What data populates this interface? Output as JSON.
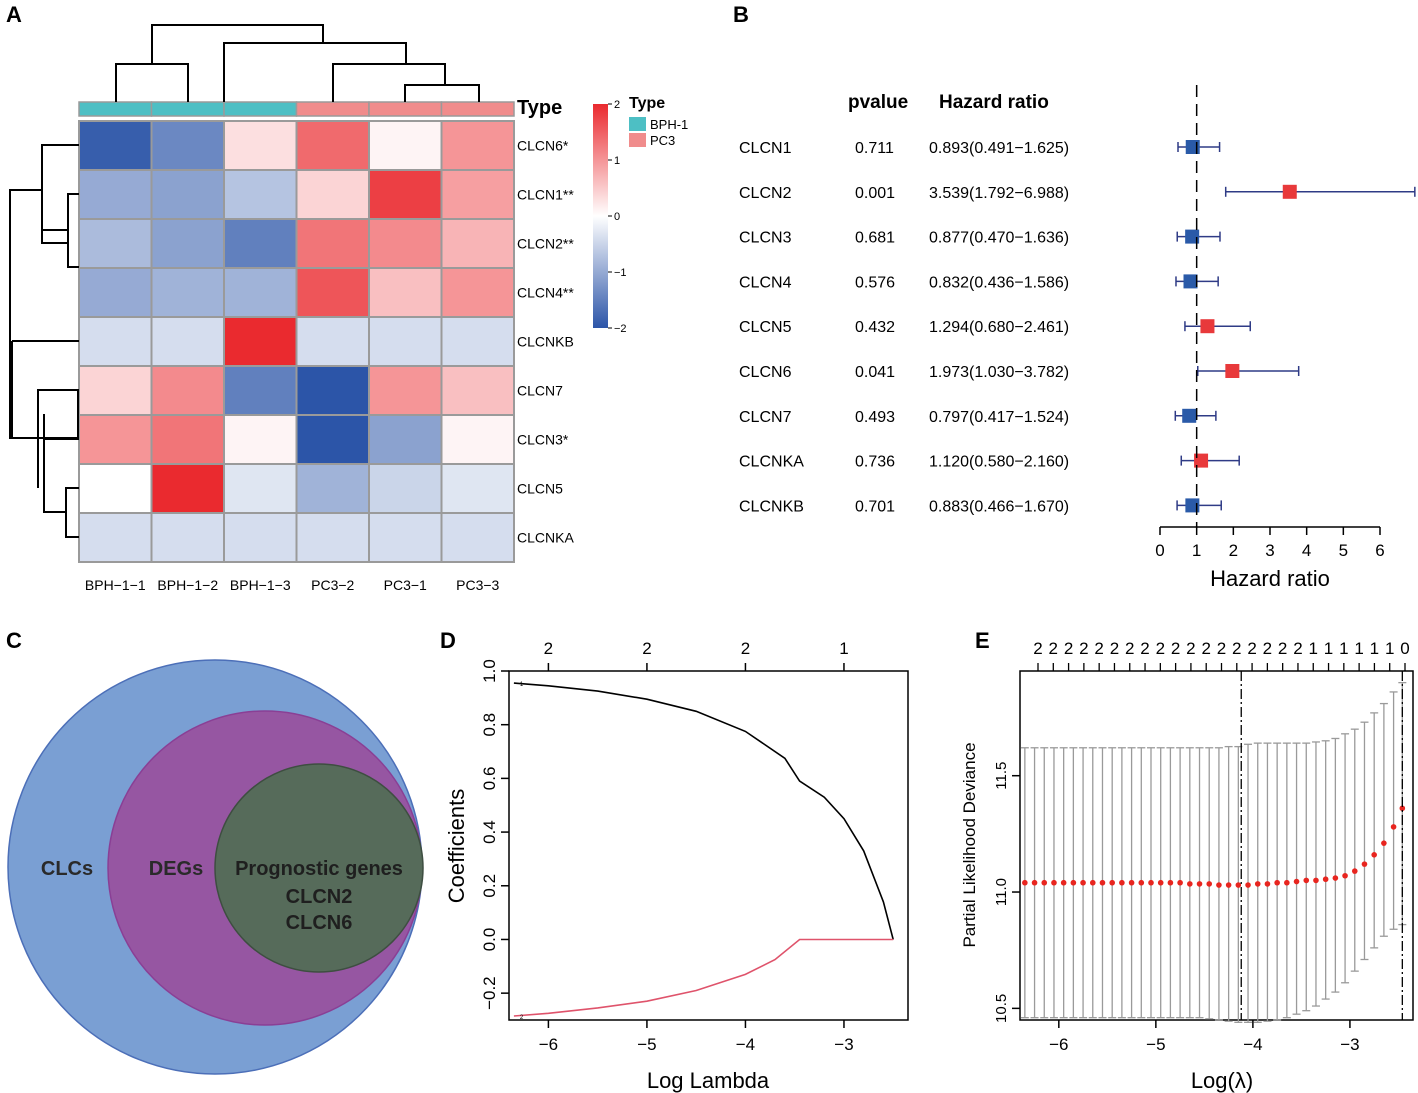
{
  "panels": {
    "A": "A",
    "B": "B",
    "C": "C",
    "D": "D",
    "E": "E"
  },
  "chart_data": [
    {
      "panel": "A",
      "type": "heatmap",
      "columns": [
        "BPH−1−1",
        "BPH−1−2",
        "BPH−1−3",
        "PC3−2",
        "PC3−1",
        "PC3−3"
      ],
      "column_types": [
        "BPH-1",
        "BPH-1",
        "BPH-1",
        "PC3",
        "PC3",
        "PC3"
      ],
      "rows": [
        "CLCN6*",
        "CLCN1**",
        "CLCN2**",
        "CLCN4**",
        "CLCNKB",
        "CLCN7",
        "CLCN3*",
        "CLCN5",
        "CLCNKA"
      ],
      "values": [
        [
          -1.9,
          -1.4,
          0.3,
          1.4,
          0.1,
          1.0
        ],
        [
          -1.0,
          -1.1,
          -0.7,
          0.4,
          1.8,
          0.9
        ],
        [
          -0.8,
          -1.1,
          -1.5,
          1.3,
          1.1,
          0.7
        ],
        [
          -1.0,
          -0.9,
          -0.9,
          1.6,
          0.6,
          1.0
        ],
        [
          -0.4,
          -0.4,
          2.0,
          -0.4,
          -0.4,
          -0.4
        ],
        [
          0.4,
          1.1,
          -1.5,
          -2.0,
          1.0,
          0.6
        ],
        [
          1.0,
          1.3,
          0.1,
          -2.0,
          -1.1,
          0.1
        ],
        [
          0.0,
          2.0,
          -0.3,
          -0.9,
          -0.5,
          -0.3
        ],
        [
          -0.4,
          -0.4,
          -0.4,
          -0.4,
          -0.4,
          -0.4
        ]
      ],
      "annotation_title": "Type",
      "legend_title": "Type",
      "legend_entries": [
        {
          "label": "BPH-1",
          "color": "#4dbfc4"
        },
        {
          "label": "PC3",
          "color": "#f08c8c"
        }
      ],
      "colorbar_ticks": [
        "2",
        "1",
        "0",
        "−1",
        "−2"
      ],
      "color_low": "#2c55a8",
      "color_mid": "#ffffff",
      "color_high": "#ea2a2f"
    },
    {
      "panel": "B",
      "type": "forest",
      "header_pvalue": "pvalue",
      "header_hr": "Hazard ratio",
      "genes": [
        "CLCN1",
        "CLCN2",
        "CLCN3",
        "CLCN4",
        "CLCN5",
        "CLCN6",
        "CLCN7",
        "CLCNKA",
        "CLCNKB"
      ],
      "pvalues": [
        "0.711",
        "0.001",
        "0.681",
        "0.576",
        "0.432",
        "0.041",
        "0.493",
        "0.736",
        "0.701"
      ],
      "hr_text": [
        "0.893(0.491−1.625)",
        "3.539(1.792−6.988)",
        "0.877(0.470−1.636)",
        "0.832(0.436−1.586)",
        "1.294(0.680−2.461)",
        "1.973(1.030−3.782)",
        "0.797(0.417−1.524)",
        "1.120(0.580−2.160)",
        "0.883(0.466−1.670)"
      ],
      "hr": [
        0.893,
        3.539,
        0.877,
        0.832,
        1.294,
        1.973,
        0.797,
        1.12,
        0.883
      ],
      "lower": [
        0.491,
        1.792,
        0.47,
        0.436,
        0.68,
        1.03,
        0.417,
        0.58,
        0.466
      ],
      "upper": [
        1.625,
        6.988,
        1.636,
        1.586,
        2.461,
        3.782,
        1.524,
        2.16,
        1.67
      ],
      "xlim": [
        0,
        6
      ],
      "xticks": [
        "0",
        "1",
        "2",
        "3",
        "4",
        "5",
        "6"
      ],
      "xlabel": "Hazard ratio",
      "risk_color": "#e8393b",
      "protect_color": "#2a5aa8"
    },
    {
      "panel": "C",
      "type": "venn",
      "sets": [
        {
          "label": "CLCs",
          "color": "#7a9fd3"
        },
        {
          "label": "DEGs",
          "color": "#9656a2"
        },
        {
          "label": "Prognostic genes",
          "color": "#566b5a"
        }
      ],
      "prognostic_genes": [
        "CLCN2",
        "CLCN6"
      ]
    },
    {
      "panel": "D",
      "type": "line",
      "xlabel": "Log Lambda",
      "ylabel": "Coefficients",
      "xlim": [
        -6.4,
        -2.35
      ],
      "ylim": [
        -0.3,
        1.0
      ],
      "xticks": [
        "−6",
        "−5",
        "−4",
        "−3"
      ],
      "yticks": [
        "−0.2",
        "0.0",
        "0.2",
        "0.4",
        "0.6",
        "0.8",
        "1.0"
      ],
      "top_ticks": [
        "2",
        "2",
        "2",
        "1"
      ],
      "series": [
        {
          "name": "1",
          "color": "#000000",
          "x": [
            -6.35,
            -6.0,
            -5.5,
            -5.0,
            -4.5,
            -4.0,
            -3.6,
            -3.45,
            -3.2,
            -3.0,
            -2.8,
            -2.6,
            -2.5
          ],
          "y": [
            0.955,
            0.945,
            0.925,
            0.895,
            0.85,
            0.775,
            0.675,
            0.59,
            0.53,
            0.45,
            0.33,
            0.14,
            0.0
          ]
        },
        {
          "name": "2",
          "color": "#df536b",
          "x": [
            -6.35,
            -6.0,
            -5.5,
            -5.0,
            -4.5,
            -4.0,
            -3.7,
            -3.45,
            -3.2,
            -3.0,
            -2.5
          ],
          "y": [
            -0.285,
            -0.275,
            -0.255,
            -0.23,
            -0.19,
            -0.13,
            -0.075,
            0.0,
            0.0,
            0.0,
            0.0
          ]
        }
      ]
    },
    {
      "panel": "E",
      "type": "scatter",
      "xlabel": "Log(λ)",
      "ylabel": "Partial Likelihood Deviance",
      "xlim": [
        -6.4,
        -2.35
      ],
      "ylim": [
        10.45,
        11.95
      ],
      "xticks": [
        "−6",
        "−5",
        "−4",
        "−3"
      ],
      "yticks": [
        "10.5",
        "11.0",
        "11.5"
      ],
      "top_counts": [
        "2",
        "2",
        "2",
        "2",
        "2",
        "2",
        "2",
        "2",
        "2",
        "2",
        "2",
        "2",
        "2",
        "2",
        "2",
        "2",
        "2",
        "2",
        "1",
        "1",
        "1",
        "1",
        "1",
        "1",
        "0"
      ],
      "lambda_min": -4.12,
      "lambda_1se": -2.46,
      "point_color": "#e8251f",
      "points": {
        "x": [
          -6.35,
          -6.25,
          -6.15,
          -6.05,
          -5.95,
          -5.85,
          -5.75,
          -5.65,
          -5.55,
          -5.45,
          -5.35,
          -5.25,
          -5.15,
          -5.05,
          -4.95,
          -4.85,
          -4.75,
          -4.65,
          -4.55,
          -4.45,
          -4.35,
          -4.25,
          -4.15,
          -4.05,
          -3.95,
          -3.85,
          -3.75,
          -3.65,
          -3.55,
          -3.45,
          -3.35,
          -3.25,
          -3.15,
          -3.05,
          -2.95,
          -2.85,
          -2.75,
          -2.65,
          -2.55,
          -2.46
        ],
        "y": [
          11.04,
          11.04,
          11.04,
          11.04,
          11.04,
          11.04,
          11.04,
          11.04,
          11.04,
          11.04,
          11.04,
          11.04,
          11.04,
          11.04,
          11.04,
          11.04,
          11.04,
          11.035,
          11.035,
          11.035,
          11.03,
          11.03,
          11.03,
          11.03,
          11.035,
          11.035,
          11.04,
          11.04,
          11.045,
          11.05,
          11.05,
          11.055,
          11.06,
          11.07,
          11.09,
          11.12,
          11.16,
          11.21,
          11.28,
          11.36
        ],
        "lower": [
          10.46,
          10.46,
          10.46,
          10.46,
          10.46,
          10.46,
          10.46,
          10.46,
          10.46,
          10.46,
          10.46,
          10.46,
          10.46,
          10.46,
          10.46,
          10.46,
          10.46,
          10.46,
          10.46,
          10.455,
          10.45,
          10.445,
          10.44,
          10.44,
          10.44,
          10.445,
          10.45,
          10.46,
          10.475,
          10.49,
          10.51,
          10.54,
          10.57,
          10.61,
          10.66,
          10.71,
          10.76,
          10.81,
          10.84,
          10.86
        ],
        "upper": [
          11.62,
          11.62,
          11.62,
          11.62,
          11.62,
          11.62,
          11.62,
          11.62,
          11.62,
          11.62,
          11.62,
          11.62,
          11.62,
          11.62,
          11.62,
          11.62,
          11.62,
          11.62,
          11.62,
          11.62,
          11.62,
          11.625,
          11.625,
          11.635,
          11.64,
          11.64,
          11.64,
          11.64,
          11.64,
          11.64,
          11.645,
          11.65,
          11.66,
          11.68,
          11.7,
          11.73,
          11.77,
          11.81,
          11.86,
          11.9
        ]
      }
    }
  ]
}
